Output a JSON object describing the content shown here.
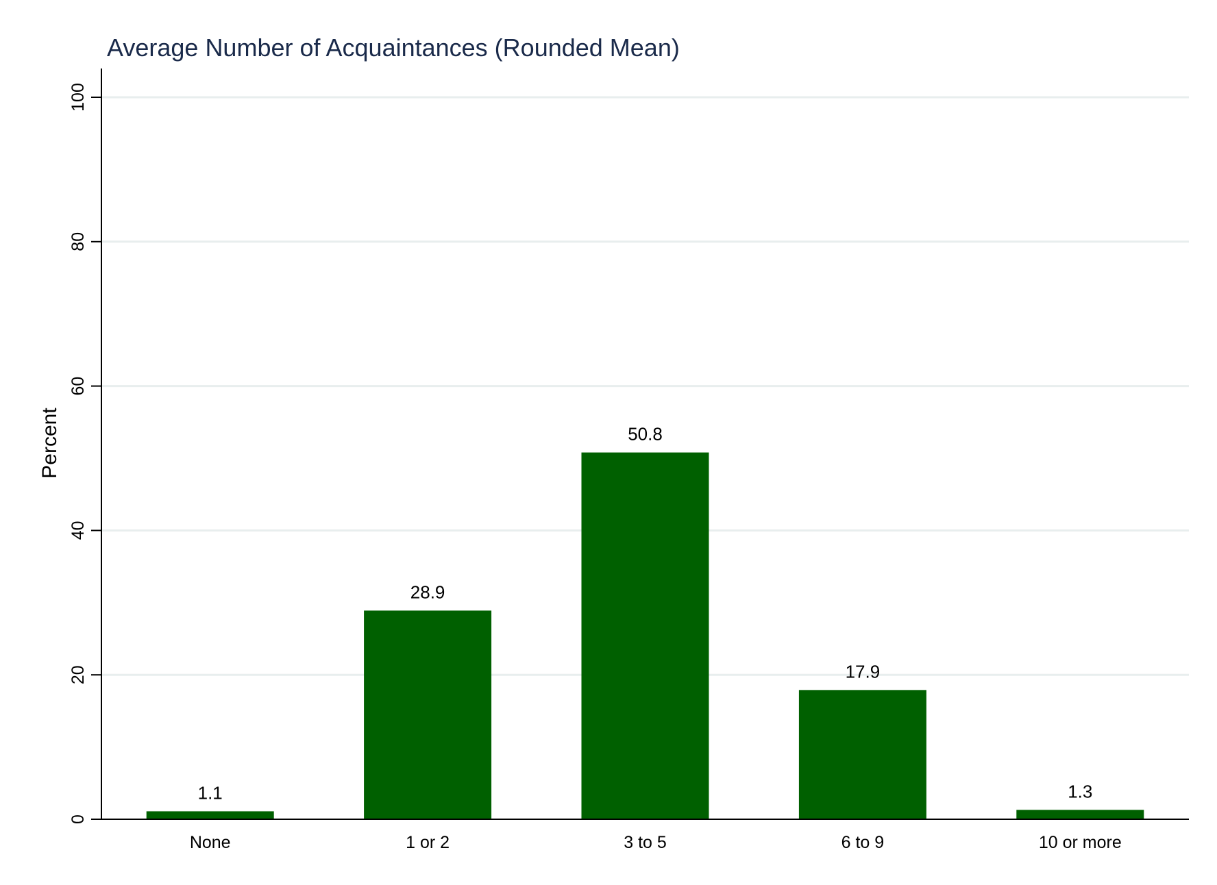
{
  "chart_data": {
    "type": "bar",
    "title": "Average Number of Acquaintances (Rounded Mean)",
    "xlabel": "",
    "ylabel": "Percent",
    "categories": [
      "None",
      "1 or 2",
      "3 to 5",
      "6 to 9",
      "10 or more"
    ],
    "values": [
      1.1,
      28.9,
      50.8,
      17.9,
      1.3
    ],
    "value_labels": [
      "1.1",
      "28.9",
      "50.8",
      "17.9",
      "1.3"
    ],
    "ylim": [
      0,
      100
    ],
    "yticks": [
      0,
      20,
      40,
      60,
      80,
      100
    ],
    "grid": true,
    "legend": "none",
    "colors": {
      "bar": "#006000",
      "grid": "#e8eeee",
      "axis": "#000000",
      "title": "#1a2a4a"
    }
  }
}
